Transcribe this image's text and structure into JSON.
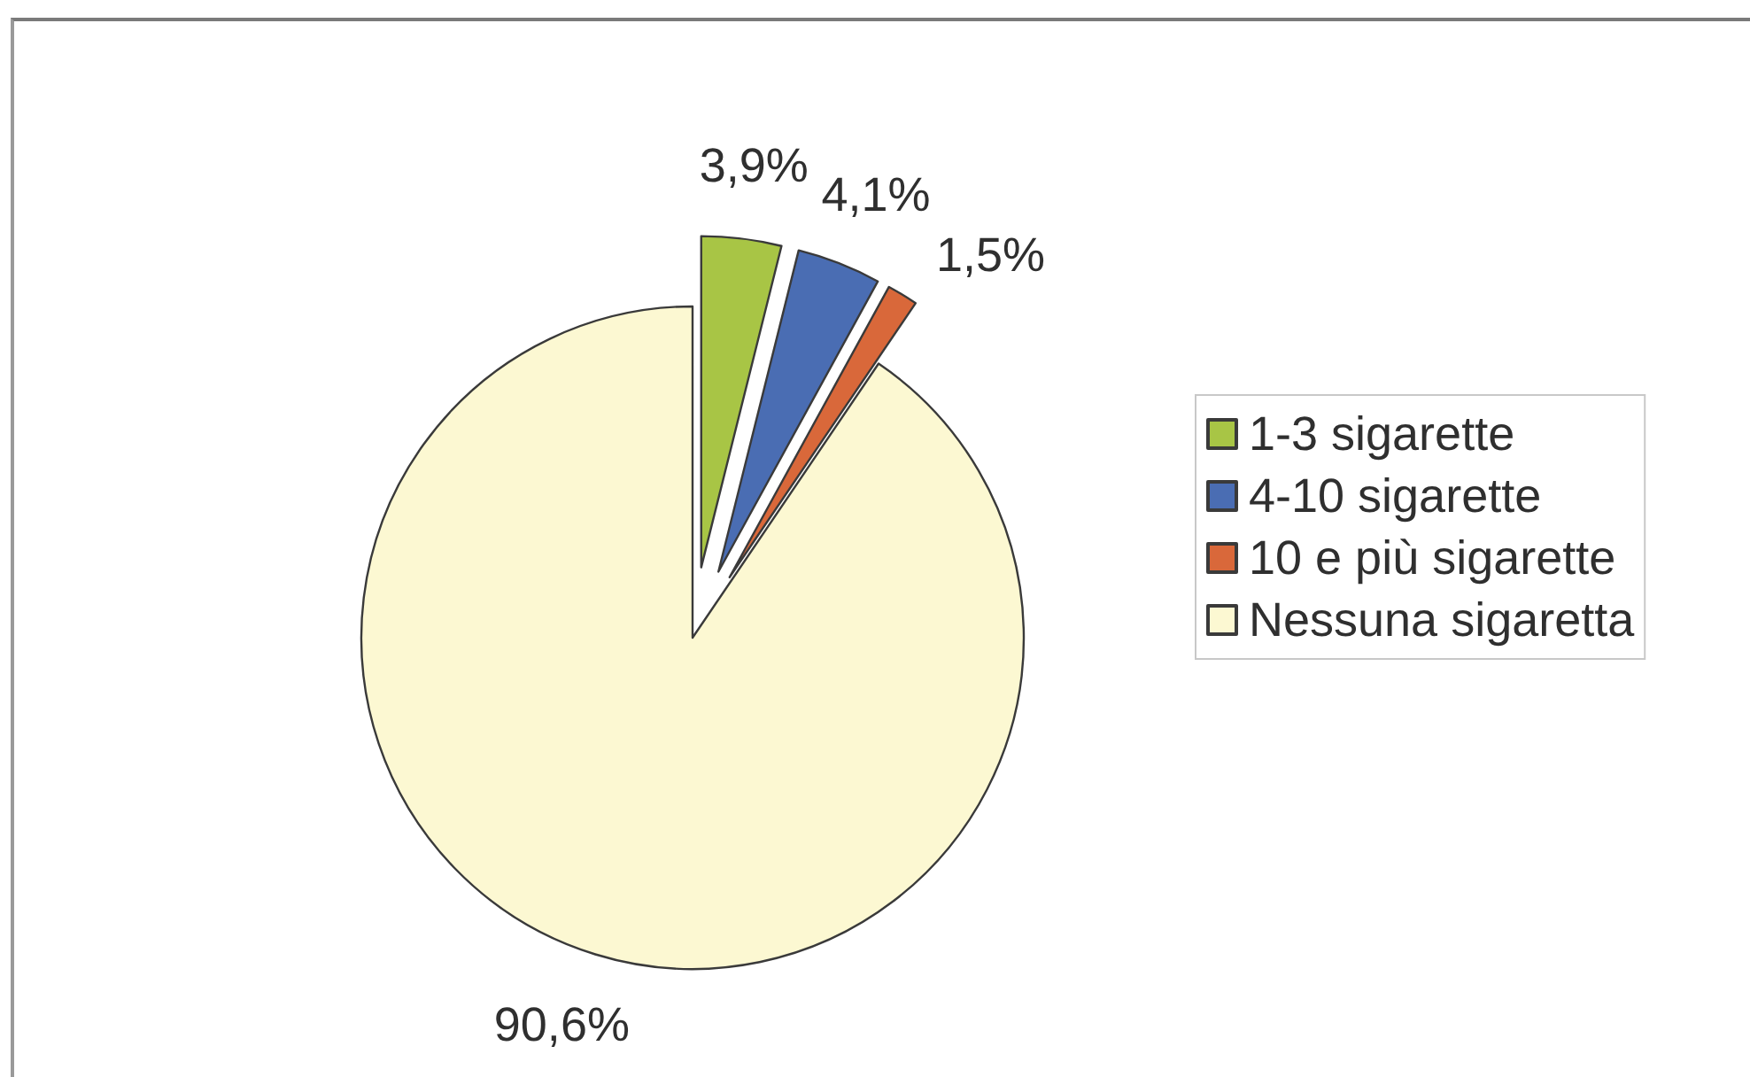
{
  "chart_data": {
    "type": "pie",
    "categories": [
      "1-3 sigarette",
      "4-10 sigarette",
      "10 e più sigarette",
      "Nessuna sigaretta"
    ],
    "values": [
      3.9,
      4.1,
      1.5,
      90.6
    ],
    "colors": [
      "#a8c545",
      "#4a6db3",
      "#d9683a",
      "#fcf8d2"
    ],
    "value_labels": [
      "3,9%",
      "4,1%",
      "1,5%",
      "90,6%"
    ],
    "legend": "right"
  }
}
